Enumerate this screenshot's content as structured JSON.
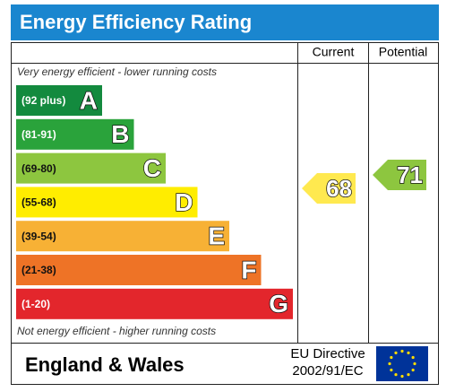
{
  "chart_data": {
    "type": "epc",
    "title": "Energy Efficiency Rating",
    "columns": [
      "Current",
      "Potential"
    ],
    "top_note": "Very energy efficient - lower running costs",
    "bottom_note": "Not energy efficient - higher running costs",
    "bands": [
      {
        "range": "(92 plus)",
        "letter": "A",
        "color": "#138a3e",
        "text_color": "#ffffff"
      },
      {
        "range": "(81-91)",
        "letter": "B",
        "color": "#2aa33b",
        "text_color": "#ffffff"
      },
      {
        "range": "(69-80)",
        "letter": "C",
        "color": "#8dc63f",
        "text_color": "#111111"
      },
      {
        "range": "(55-68)",
        "letter": "D",
        "color": "#ffed00",
        "text_color": "#111111"
      },
      {
        "range": "(39-54)",
        "letter": "E",
        "color": "#f7b135",
        "text_color": "#111111"
      },
      {
        "range": "(21-38)",
        "letter": "F",
        "color": "#ee7326",
        "text_color": "#111111"
      },
      {
        "range": "(1-20)",
        "letter": "G",
        "color": "#e3262c",
        "text_color": "#ffffff"
      }
    ],
    "current": {
      "value": 68,
      "color": "#ffe94f"
    },
    "potential": {
      "value": 71,
      "color": "#8dc63f"
    },
    "footer": {
      "region": "England & Wales",
      "directive": [
        "EU Directive",
        "2002/91/EC"
      ]
    }
  }
}
